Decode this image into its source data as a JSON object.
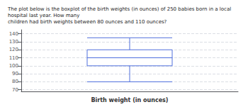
{
  "chart_data": {
    "type": "boxplot",
    "title": "The plot below is the boxplot of the birth weights (in ounces) of 250 babies born in a local hospital last year. How many",
    "subtitle": "children had birth weights between 80 ounces and 110 ounces?",
    "xlabel": "Birth weight (in ounces)",
    "categories": [
      null
    ],
    "values": [
      {
        "whisker_low": 80,
        "q1": 100,
        "median": 110,
        "q3": 120,
        "whisker_high": 135
      }
    ],
    "ylim": [
      68,
      145
    ],
    "yticks": [
      70,
      80,
      90,
      100,
      110,
      120,
      130,
      140
    ],
    "grid": true,
    "tick_labels": "y"
  }
}
